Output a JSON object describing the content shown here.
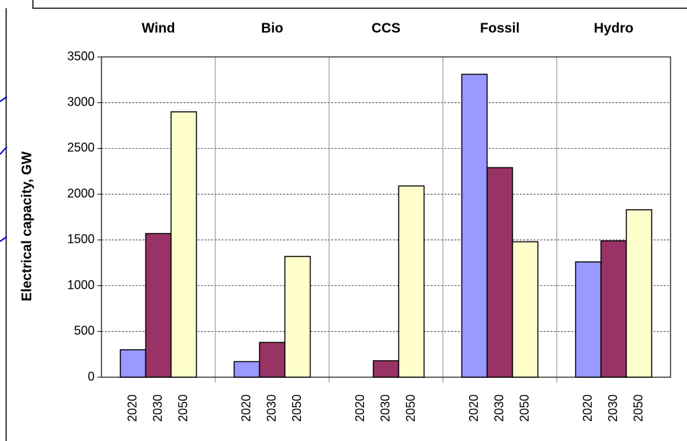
{
  "chart_data": {
    "type": "bar",
    "ylabel": "Electrical capacity, GW",
    "categories": [
      "Wind",
      "Bio",
      "CCS",
      "Fossil",
      "Hydro"
    ],
    "series": [
      {
        "name": "2020",
        "color": "#9999ff",
        "values": [
          300,
          170,
          0,
          3310,
          1260
        ]
      },
      {
        "name": "2030",
        "color": "#993366",
        "values": [
          1570,
          380,
          180,
          2290,
          1490
        ]
      },
      {
        "name": "2050",
        "color": "#ffffcc",
        "values": [
          2900,
          1320,
          2090,
          1480,
          1830
        ]
      }
    ],
    "ylim": [
      0,
      3500
    ],
    "yticks": [
      0,
      500,
      1000,
      1500,
      2000,
      2500,
      3000,
      3500
    ],
    "grid": true
  }
}
